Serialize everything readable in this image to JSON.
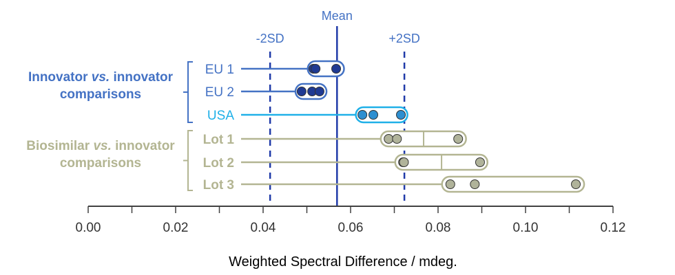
{
  "chart_data": {
    "type": "scatter",
    "xlabel": "Weighted Spectral Difference / mdeg.",
    "xlim": [
      0,
      0.12
    ],
    "x_ticks": [
      "0.00",
      "0.02",
      "0.04",
      "0.06",
      "0.08",
      "0.10",
      "0.12"
    ],
    "x_tick_values": [
      0,
      0.02,
      0.04,
      0.06,
      0.08,
      0.1,
      0.12
    ],
    "minor_tick_step": 0.01,
    "grid": false,
    "reference_lines": [
      {
        "label": "-2SD",
        "value": 0.0416,
        "style": "dashed"
      },
      {
        "label": "Mean",
        "value": 0.0569,
        "style": "solid"
      },
      {
        "label": "+2SD",
        "value": 0.0723,
        "style": "dashed"
      }
    ],
    "groups": [
      {
        "label_parts": [
          "Innovator ",
          "vs.",
          " innovator"
        ],
        "label_line2": "comparisons",
        "color": "#4472c4"
      },
      {
        "label_parts": [
          "Biosimilar ",
          "vs.",
          " innovator"
        ],
        "label_line2": "comparisons",
        "color": "#b3b592"
      }
    ],
    "series": [
      {
        "name": "EU 1",
        "group": 0,
        "values": [
          0.0515,
          0.052,
          0.0567
        ],
        "range": [
          0.0502,
          0.0585
        ],
        "color": "#4472c4",
        "point_color": "#1f3a93"
      },
      {
        "name": "EU 2",
        "group": 0,
        "values": [
          0.0488,
          0.0512,
          0.0529
        ],
        "range": [
          0.0474,
          0.0545
        ],
        "color": "#4472c4",
        "point_color": "#1f3a93"
      },
      {
        "name": "USA",
        "group": 0,
        "values": [
          0.0627,
          0.0652,
          0.0715
        ],
        "range": [
          0.0612,
          0.073
        ],
        "color": "#1fb0e8",
        "point_color": "#2e8fd0"
      },
      {
        "name": "Lot 1",
        "group": 1,
        "values": [
          0.0687,
          0.0706,
          0.0846
        ],
        "median": 0.0767,
        "range": [
          0.0669,
          0.0864
        ],
        "color": "#b3b592",
        "point_color": "#b0b39a"
      },
      {
        "name": "Lot 2",
        "group": 1,
        "values": [
          0.072,
          0.0722,
          0.0896
        ],
        "median": 0.0808,
        "range": [
          0.0702,
          0.0913
        ],
        "color": "#b3b592",
        "point_color": "#b0b39a"
      },
      {
        "name": "Lot 3",
        "group": 1,
        "values": [
          0.0828,
          0.0884,
          0.1115
        ],
        "range": [
          0.0809,
          0.1134
        ],
        "color": "#b3b592",
        "point_color": "#b0b39a"
      }
    ],
    "colors": {
      "reference_line": "#1f3aa8",
      "reference_label": "#4472c4",
      "axis": "#404040"
    }
  }
}
